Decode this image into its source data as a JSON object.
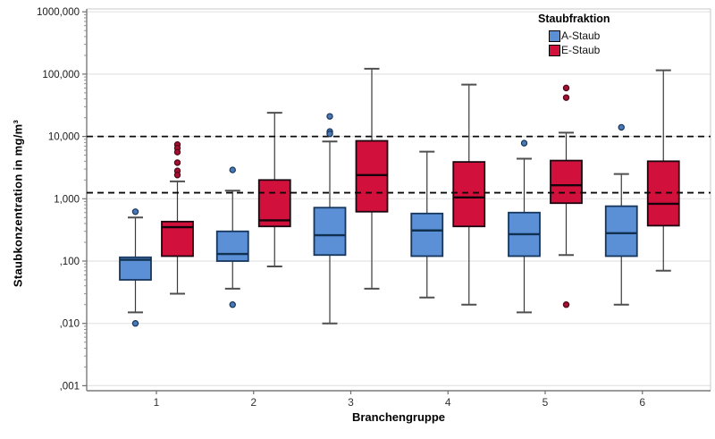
{
  "chart_data": {
    "type": "boxplot",
    "y_axis": {
      "label": "Staubkonzentration in mg/m³",
      "scale": "log",
      "min": 0.001,
      "max": 1000,
      "ticks": [
        {
          "value": 1000,
          "label": "1000,000"
        },
        {
          "value": 100,
          "label": "100,000"
        },
        {
          "value": 10,
          "label": "10,000"
        },
        {
          "value": 1,
          "label": "1,000"
        },
        {
          "value": 0.1,
          "label": ",100"
        },
        {
          "value": 0.01,
          "label": ",010"
        },
        {
          "value": 0.001,
          "label": ",001"
        }
      ]
    },
    "x_axis": {
      "label": "Branchengruppe",
      "categories": [
        "1",
        "2",
        "3",
        "4",
        "5",
        "6"
      ]
    },
    "reference_lines": [
      {
        "value": 10,
        "style": "dashed",
        "color": "#0a0a0a"
      },
      {
        "value": 1.25,
        "style": "dashed",
        "color": "#0a0a0a"
      }
    ],
    "legend": {
      "title": "Staubfraktion",
      "items": [
        {
          "label": "A-Staub",
          "color": "#5b8fd6"
        },
        {
          "label": "E-Staub",
          "color": "#d2103c"
        }
      ]
    },
    "series": [
      {
        "name": "A-Staub",
        "fill": "#5b8fd6",
        "stroke": "#17365d",
        "median_color": "#10304f",
        "outlier_fill": "#4a79b5",
        "outlier_stroke": "#16355a",
        "boxes": [
          {
            "group": "1",
            "whisker_low": 0.015,
            "q1": 0.05,
            "median": 0.105,
            "q3": 0.115,
            "whisker_high": 0.5,
            "outliers_high": [
              0.62
            ],
            "outliers_low": [
              0.01
            ]
          },
          {
            "group": "2",
            "whisker_low": 0.036,
            "q1": 0.1,
            "median": 0.13,
            "q3": 0.3,
            "whisker_high": 1.35,
            "outliers_high": [
              2.9
            ],
            "outliers_low": [
              0.02
            ]
          },
          {
            "group": "3",
            "whisker_low": 0.01,
            "q1": 0.125,
            "median": 0.26,
            "q3": 0.72,
            "whisker_high": 8.3,
            "outliers_high": [
              21,
              12,
              11
            ],
            "outliers_low": []
          },
          {
            "group": "4",
            "whisker_low": 0.026,
            "q1": 0.12,
            "median": 0.31,
            "q3": 0.58,
            "whisker_high": 5.7,
            "outliers_high": [],
            "outliers_low": []
          },
          {
            "group": "5",
            "whisker_low": 0.015,
            "q1": 0.12,
            "median": 0.27,
            "q3": 0.6,
            "whisker_high": 4.4,
            "outliers_high": [
              7.8
            ],
            "outliers_low": []
          },
          {
            "group": "6",
            "whisker_low": 0.02,
            "q1": 0.12,
            "median": 0.28,
            "q3": 0.76,
            "whisker_high": 2.5,
            "outliers_high": [
              14
            ],
            "outliers_low": []
          }
        ]
      },
      {
        "name": "E-Staub",
        "fill": "#d2103c",
        "stroke": "#1c0710",
        "median_color": "#14030a",
        "outlier_fill": "#a50f32",
        "outlier_stroke": "#4d0717",
        "boxes": [
          {
            "group": "1",
            "whisker_low": 0.03,
            "q1": 0.12,
            "median": 0.35,
            "q3": 0.43,
            "whisker_high": 1.9,
            "outliers_high": [
              7.4,
              6.5,
              5.6,
              3.8,
              2.8,
              2.4
            ],
            "outliers_low": []
          },
          {
            "group": "2",
            "whisker_low": 0.082,
            "q1": 0.36,
            "median": 0.45,
            "q3": 2.0,
            "whisker_high": 24,
            "outliers_high": [],
            "outliers_low": []
          },
          {
            "group": "3",
            "whisker_low": 0.036,
            "q1": 0.62,
            "median": 2.4,
            "q3": 8.5,
            "whisker_high": 122,
            "outliers_high": [],
            "outliers_low": []
          },
          {
            "group": "4",
            "whisker_low": 0.02,
            "q1": 0.36,
            "median": 1.05,
            "q3": 3.9,
            "whisker_high": 68,
            "outliers_high": [],
            "outliers_low": []
          },
          {
            "group": "5",
            "whisker_low": 0.125,
            "q1": 0.85,
            "median": 1.65,
            "q3": 4.1,
            "whisker_high": 11.5,
            "outliers_high": [
              60,
              42
            ],
            "outliers_low": [
              0.02
            ]
          },
          {
            "group": "6",
            "whisker_low": 0.07,
            "q1": 0.37,
            "median": 0.83,
            "q3": 4.0,
            "whisker_high": 115,
            "outliers_high": [],
            "outliers_low": []
          }
        ]
      }
    ]
  }
}
